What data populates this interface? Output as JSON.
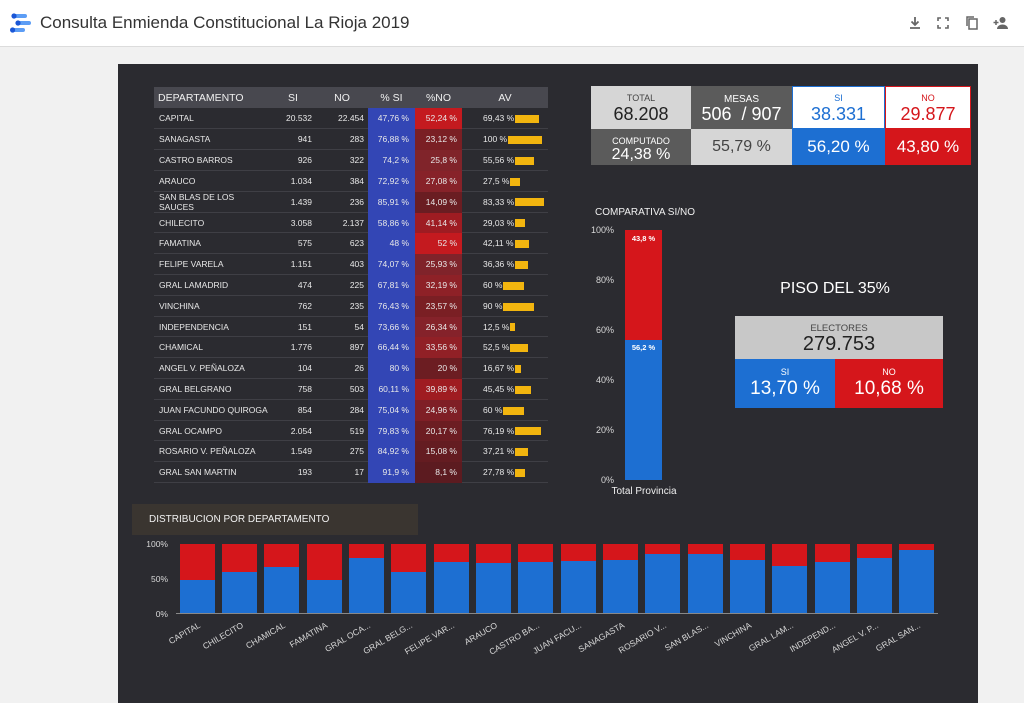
{
  "app": {
    "title": "Consulta Enmienda Constitucional La Rioja 2019"
  },
  "toolbar": {
    "icons": [
      "download-icon",
      "fullscreen-icon",
      "copy-icon",
      "add-person-icon"
    ]
  },
  "table": {
    "headers": [
      "DEPARTAMENTO",
      "SI",
      "NO",
      "% SI",
      "%NO",
      "AV"
    ],
    "rows": [
      {
        "name": "CAPITAL",
        "si": "20.532",
        "no": "22.454",
        "psi": "47,76 %",
        "pno": "52,24 %",
        "av": "69,43 %",
        "av_value": 69.43
      },
      {
        "name": "SANAGASTA",
        "si": "941",
        "no": "283",
        "psi": "76,88 %",
        "pno": "23,12 %",
        "av": "100 %",
        "av_value": 100
      },
      {
        "name": "CASTRO BARROS",
        "si": "926",
        "no": "322",
        "psi": "74,2 %",
        "pno": "25,8 %",
        "av": "55,56 %",
        "av_value": 55.56
      },
      {
        "name": "ARAUCO",
        "si": "1.034",
        "no": "384",
        "psi": "72,92 %",
        "pno": "27,08 %",
        "av": "27,5 %",
        "av_value": 27.5
      },
      {
        "name": "SAN BLAS DE LOS SAUCES",
        "si": "1.439",
        "no": "236",
        "psi": "85,91 %",
        "pno": "14,09 %",
        "av": "83,33 %",
        "av_value": 83.33
      },
      {
        "name": "CHILECITO",
        "si": "3.058",
        "no": "2.137",
        "psi": "58,86 %",
        "pno": "41,14 %",
        "av": "29,03 %",
        "av_value": 29.03
      },
      {
        "name": "FAMATINA",
        "si": "575",
        "no": "623",
        "psi": "48 %",
        "pno": "52 %",
        "av": "42,11 %",
        "av_value": 42.11
      },
      {
        "name": "FELIPE VARELA",
        "si": "1.151",
        "no": "403",
        "psi": "74,07 %",
        "pno": "25,93 %",
        "av": "36,36 %",
        "av_value": 36.36
      },
      {
        "name": "GRAL LAMADRID",
        "si": "474",
        "no": "225",
        "psi": "67,81 %",
        "pno": "32,19 %",
        "av": "60 %",
        "av_value": 60
      },
      {
        "name": "VINCHINA",
        "si": "762",
        "no": "235",
        "psi": "76,43 %",
        "pno": "23,57 %",
        "av": "90 %",
        "av_value": 90
      },
      {
        "name": "INDEPENDENCIA",
        "si": "151",
        "no": "54",
        "psi": "73,66 %",
        "pno": "26,34 %",
        "av": "12,5 %",
        "av_value": 12.5
      },
      {
        "name": "CHAMICAL",
        "si": "1.776",
        "no": "897",
        "psi": "66,44 %",
        "pno": "33,56 %",
        "av": "52,5 %",
        "av_value": 52.5
      },
      {
        "name": "ANGEL V. PEÑALOZA",
        "si": "104",
        "no": "26",
        "psi": "80 %",
        "pno": "20 %",
        "av": "16,67 %",
        "av_value": 16.67
      },
      {
        "name": "GRAL BELGRANO",
        "si": "758",
        "no": "503",
        "psi": "60,11 %",
        "pno": "39,89 %",
        "av": "45,45 %",
        "av_value": 45.45
      },
      {
        "name": "JUAN FACUNDO QUIROGA",
        "si": "854",
        "no": "284",
        "psi": "75,04 %",
        "pno": "24,96 %",
        "av": "60 %",
        "av_value": 60
      },
      {
        "name": "GRAL OCAMPO",
        "si": "2.054",
        "no": "519",
        "psi": "79,83 %",
        "pno": "20,17 %",
        "av": "76,19 %",
        "av_value": 76.19
      },
      {
        "name": "ROSARIO V. PEÑALOZA",
        "si": "1.549",
        "no": "275",
        "psi": "84,92 %",
        "pno": "15,08 %",
        "av": "37,21 %",
        "av_value": 37.21
      },
      {
        "name": "GRAL SAN MARTIN",
        "si": "193",
        "no": "17",
        "psi": "91,9 %",
        "pno": "8,1 %",
        "av": "27,78 %",
        "av_value": 27.78
      }
    ]
  },
  "kpis": {
    "total": {
      "label": "TOTAL",
      "value": "68.208"
    },
    "mesas": {
      "label": "MESAS",
      "value": "506  / 907"
    },
    "si": {
      "label": "SI",
      "value": "38.331"
    },
    "no": {
      "label": "NO",
      "value": "29.877"
    },
    "computado": {
      "label": "COMPUTADO",
      "value": "24,38 %"
    },
    "mesas_pct": {
      "value": "55,79 %"
    },
    "si_pct": {
      "value": "56,20 %"
    },
    "no_pct": {
      "value": "43,80 %"
    }
  },
  "comparativa": {
    "title": "COMPARATIVA SI/NO",
    "y_ticks": [
      "100%",
      "80%",
      "60%",
      "40%",
      "20%",
      "0%"
    ],
    "x_label": "Total Provincia",
    "si_label": "56,2 %",
    "no_label": "43,8 %",
    "si_value": 56.2,
    "no_value": 43.8
  },
  "piso": {
    "title": "PISO DEL 35%",
    "electores_label": "ELECTORES",
    "electores_value": "279.753",
    "si_label": "SI",
    "si_value": "13,70 %",
    "no_label": "NO",
    "no_value": "10,68 %"
  },
  "colors": {
    "si": "#1d6fd2",
    "no": "#d5161b",
    "av": "#f2b50f",
    "canvas": "#2b2b30"
  },
  "chart_data": {
    "type": "bar",
    "title": "DISTRIBUCION POR DEPARTAMENTO",
    "stacked": true,
    "categories": [
      "CAPITAL",
      "CHILECITO",
      "CHAMICAL",
      "FAMATINA",
      "GRAL OCA...",
      "GRAL BELG...",
      "FELIPE VAR...",
      "ARAUCO",
      "CASTRO BA...",
      "JUAN FACU...",
      "SANAGASTA",
      "ROSARIO V...",
      "SAN BLAS...",
      "VINCHINA",
      "GRAL LAM...",
      "INDEPEND...",
      "ANGEL V. P...",
      "GRAL SAN..."
    ],
    "series": [
      {
        "values": [
          47.76,
          58.86,
          66.44,
          48,
          79.83,
          60.11,
          74.07,
          72.92,
          74.2,
          75.04,
          76.88,
          84.92,
          85.91,
          76.43,
          67.81,
          73.66,
          80,
          91.9
        ]
      },
      {
        "values": [
          52.24,
          41.14,
          33.56,
          52,
          20.17,
          39.89,
          25.93,
          27.08,
          25.8,
          24.96,
          23.12,
          15.08,
          14.09,
          23.57,
          32.19,
          26.34,
          20,
          8.1
        ]
      }
    ],
    "y_ticks": [
      "100%",
      "50%",
      "0%"
    ],
    "ylim": [
      0,
      100
    ]
  }
}
